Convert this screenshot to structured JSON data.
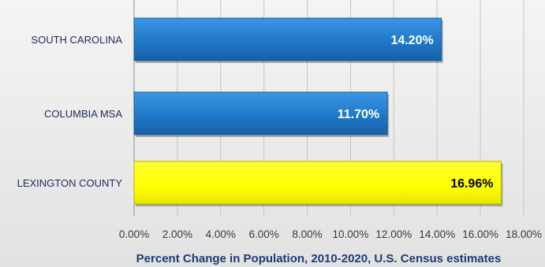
{
  "chart_data": {
    "type": "bar",
    "orientation": "horizontal",
    "categories": [
      "SOUTH CAROLINA",
      "COLUMBIA MSA",
      "LEXINGTON COUNTY"
    ],
    "values": [
      14.2,
      11.7,
      16.96
    ],
    "value_labels": [
      "14.20%",
      "11.70%",
      "16.96%"
    ],
    "bar_colors": [
      "#1f78c8",
      "#1f78c8",
      "#ffff00"
    ],
    "label_colors": [
      "#ffffff",
      "#ffffff",
      "#000000"
    ],
    "x_ticks": [
      0,
      2,
      4,
      6,
      8,
      10,
      12,
      14,
      16,
      18
    ],
    "x_tick_labels": [
      "0.00%",
      "2.00%",
      "4.00%",
      "6.00%",
      "8.00%",
      "10.00%",
      "12.00%",
      "14.00%",
      "16.00%",
      "18.00%"
    ],
    "xlim": [
      0,
      18
    ],
    "xlabel": "Percent Change in Population,  2010-2020, U.S. Census estimates",
    "grid": true,
    "legend": false
  }
}
